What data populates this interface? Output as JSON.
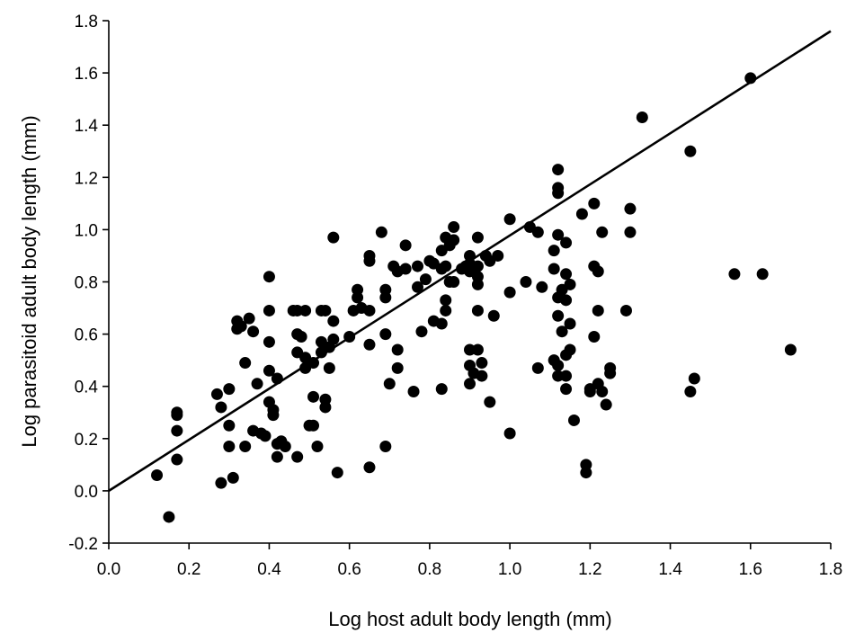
{
  "chart_data": {
    "type": "scatter",
    "title": "",
    "xlabel": "Log host adult body length (mm)",
    "ylabel": "Log parasitoid adult body length (mm)",
    "xlim": [
      0.0,
      1.8
    ],
    "ylim": [
      -0.2,
      1.8
    ],
    "x_ticks": [
      "0.0",
      "0.2",
      "0.4",
      "0.6",
      "0.8",
      "1.0",
      "1.2",
      "1.4",
      "1.6",
      "1.8"
    ],
    "y_ticks": [
      "-0.2",
      "0.0",
      "0.2",
      "0.4",
      "0.6",
      "0.8",
      "1.0",
      "1.2",
      "1.4",
      "1.6",
      "1.8"
    ],
    "grid": false,
    "legend": "none",
    "trend_line": {
      "x": [
        0.0,
        1.8
      ],
      "y": [
        0.0,
        1.76
      ]
    },
    "points": [
      [
        0.12,
        0.06
      ],
      [
        0.15,
        -0.1
      ],
      [
        0.17,
        0.29
      ],
      [
        0.17,
        0.3
      ],
      [
        0.17,
        0.23
      ],
      [
        0.17,
        0.12
      ],
      [
        0.27,
        0.37
      ],
      [
        0.28,
        0.32
      ],
      [
        0.28,
        0.03
      ],
      [
        0.3,
        0.39
      ],
      [
        0.3,
        0.25
      ],
      [
        0.3,
        0.17
      ],
      [
        0.31,
        0.05
      ],
      [
        0.32,
        0.65
      ],
      [
        0.32,
        0.62
      ],
      [
        0.33,
        0.63
      ],
      [
        0.34,
        0.49
      ],
      [
        0.34,
        0.17
      ],
      [
        0.35,
        0.66
      ],
      [
        0.36,
        0.61
      ],
      [
        0.36,
        0.23
      ],
      [
        0.37,
        0.41
      ],
      [
        0.38,
        0.22
      ],
      [
        0.39,
        0.21
      ],
      [
        0.4,
        0.82
      ],
      [
        0.4,
        0.69
      ],
      [
        0.4,
        0.57
      ],
      [
        0.4,
        0.46
      ],
      [
        0.4,
        0.34
      ],
      [
        0.41,
        0.31
      ],
      [
        0.41,
        0.29
      ],
      [
        0.42,
        0.43
      ],
      [
        0.42,
        0.18
      ],
      [
        0.42,
        0.13
      ],
      [
        0.43,
        0.19
      ],
      [
        0.44,
        0.17
      ],
      [
        0.46,
        0.69
      ],
      [
        0.47,
        0.69
      ],
      [
        0.47,
        0.6
      ],
      [
        0.47,
        0.53
      ],
      [
        0.47,
        0.13
      ],
      [
        0.48,
        0.59
      ],
      [
        0.49,
        0.69
      ],
      [
        0.49,
        0.51
      ],
      [
        0.49,
        0.47
      ],
      [
        0.5,
        0.25
      ],
      [
        0.51,
        0.49
      ],
      [
        0.51,
        0.36
      ],
      [
        0.51,
        0.25
      ],
      [
        0.52,
        0.17
      ],
      [
        0.53,
        0.69
      ],
      [
        0.53,
        0.57
      ],
      [
        0.53,
        0.53
      ],
      [
        0.54,
        0.69
      ],
      [
        0.54,
        0.35
      ],
      [
        0.54,
        0.32
      ],
      [
        0.55,
        0.55
      ],
      [
        0.55,
        0.47
      ],
      [
        0.56,
        0.97
      ],
      [
        0.56,
        0.65
      ],
      [
        0.56,
        0.58
      ],
      [
        0.57,
        0.07
      ],
      [
        0.6,
        0.59
      ],
      [
        0.61,
        0.69
      ],
      [
        0.62,
        0.77
      ],
      [
        0.62,
        0.74
      ],
      [
        0.63,
        0.7
      ],
      [
        0.65,
        0.9
      ],
      [
        0.65,
        0.88
      ],
      [
        0.65,
        0.69
      ],
      [
        0.65,
        0.56
      ],
      [
        0.65,
        0.09
      ],
      [
        0.68,
        0.99
      ],
      [
        0.69,
        0.77
      ],
      [
        0.69,
        0.74
      ],
      [
        0.69,
        0.6
      ],
      [
        0.69,
        0.17
      ],
      [
        0.7,
        0.41
      ],
      [
        0.71,
        0.86
      ],
      [
        0.72,
        0.84
      ],
      [
        0.72,
        0.54
      ],
      [
        0.72,
        0.47
      ],
      [
        0.74,
        0.85
      ],
      [
        0.74,
        0.94
      ],
      [
        0.76,
        0.38
      ],
      [
        0.77,
        0.86
      ],
      [
        0.77,
        0.78
      ],
      [
        0.78,
        0.61
      ],
      [
        0.79,
        0.81
      ],
      [
        0.8,
        0.88
      ],
      [
        0.81,
        0.87
      ],
      [
        0.81,
        0.65
      ],
      [
        0.83,
        0.92
      ],
      [
        0.83,
        0.85
      ],
      [
        0.83,
        0.64
      ],
      [
        0.83,
        0.39
      ],
      [
        0.84,
        0.97
      ],
      [
        0.84,
        0.86
      ],
      [
        0.84,
        0.73
      ],
      [
        0.84,
        0.69
      ],
      [
        0.85,
        0.94
      ],
      [
        0.85,
        0.8
      ],
      [
        0.86,
        1.01
      ],
      [
        0.86,
        0.96
      ],
      [
        0.86,
        0.8
      ],
      [
        0.88,
        0.85
      ],
      [
        0.89,
        0.86
      ],
      [
        0.9,
        0.9
      ],
      [
        0.9,
        0.87
      ],
      [
        0.9,
        0.84
      ],
      [
        0.9,
        0.54
      ],
      [
        0.9,
        0.48
      ],
      [
        0.9,
        0.41
      ],
      [
        0.91,
        0.45
      ],
      [
        0.92,
        0.97
      ],
      [
        0.92,
        0.86
      ],
      [
        0.92,
        0.82
      ],
      [
        0.92,
        0.79
      ],
      [
        0.92,
        0.69
      ],
      [
        0.92,
        0.54
      ],
      [
        0.93,
        0.49
      ],
      [
        0.93,
        0.44
      ],
      [
        0.94,
        0.9
      ],
      [
        0.95,
        0.88
      ],
      [
        0.95,
        0.34
      ],
      [
        0.96,
        0.67
      ],
      [
        0.97,
        0.9
      ],
      [
        1.0,
        1.04
      ],
      [
        1.0,
        0.76
      ],
      [
        1.0,
        0.22
      ],
      [
        1.04,
        0.8
      ],
      [
        1.05,
        1.01
      ],
      [
        1.07,
        0.99
      ],
      [
        1.07,
        0.47
      ],
      [
        1.08,
        0.78
      ],
      [
        1.11,
        0.92
      ],
      [
        1.11,
        0.85
      ],
      [
        1.11,
        0.5
      ],
      [
        1.12,
        1.23
      ],
      [
        1.12,
        1.16
      ],
      [
        1.12,
        1.14
      ],
      [
        1.12,
        0.98
      ],
      [
        1.12,
        0.74
      ],
      [
        1.12,
        0.67
      ],
      [
        1.12,
        0.48
      ],
      [
        1.12,
        0.44
      ],
      [
        1.13,
        0.77
      ],
      [
        1.13,
        0.61
      ],
      [
        1.14,
        0.95
      ],
      [
        1.14,
        0.83
      ],
      [
        1.14,
        0.73
      ],
      [
        1.14,
        0.52
      ],
      [
        1.14,
        0.44
      ],
      [
        1.14,
        0.39
      ],
      [
        1.15,
        0.79
      ],
      [
        1.15,
        0.64
      ],
      [
        1.15,
        0.54
      ],
      [
        1.16,
        0.27
      ],
      [
        1.18,
        1.06
      ],
      [
        1.19,
        0.1
      ],
      [
        1.19,
        0.07
      ],
      [
        1.2,
        0.39
      ],
      [
        1.2,
        0.38
      ],
      [
        1.21,
        1.1
      ],
      [
        1.21,
        0.86
      ],
      [
        1.21,
        0.59
      ],
      [
        1.22,
        0.84
      ],
      [
        1.22,
        0.69
      ],
      [
        1.22,
        0.41
      ],
      [
        1.23,
        0.99
      ],
      [
        1.23,
        0.38
      ],
      [
        1.24,
        0.33
      ],
      [
        1.25,
        0.47
      ],
      [
        1.25,
        0.45
      ],
      [
        1.29,
        0.69
      ],
      [
        1.3,
        1.08
      ],
      [
        1.3,
        0.99
      ],
      [
        1.33,
        1.43
      ],
      [
        1.45,
        1.3
      ],
      [
        1.45,
        0.38
      ],
      [
        1.46,
        0.43
      ],
      [
        1.56,
        0.83
      ],
      [
        1.6,
        1.58
      ],
      [
        1.63,
        0.83
      ],
      [
        1.7,
        0.54
      ]
    ]
  }
}
